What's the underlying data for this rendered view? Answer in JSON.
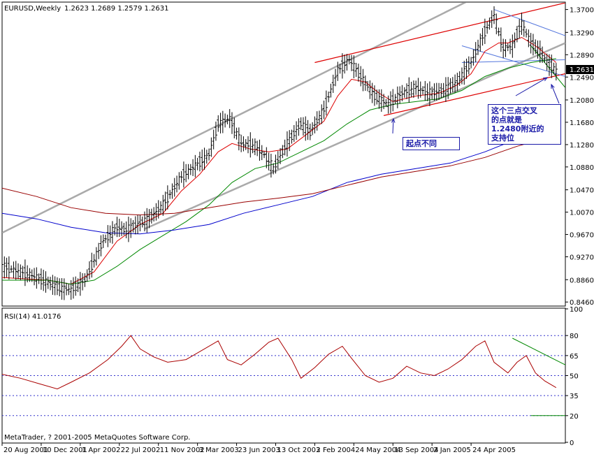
{
  "header": {
    "symbol": "EURUSD,Weekly",
    "ohlc": "1.2623 1.2689 1.2579 1.2631"
  },
  "rsi_header": "RSI(14) 41.0176",
  "copyright": "MetaTrader, ? 2001-2005 MetaQuotes Software Corp.",
  "current_price_label": "1.2631",
  "annotations": {
    "support_note": [
      "这个三点交叉",
      "的点就是",
      "1.2480附近的",
      "支持位"
    ],
    "start_note": "起点不同"
  },
  "colors": {
    "bars": "#000000",
    "ma_fast": "#dd0000",
    "ma_mid": "#008800",
    "ma_slow_blue": "#0000cc",
    "ma_slow_red": "#990000",
    "channel_gray": "#aaaaaa",
    "channel_red": "#dd0000",
    "trend_blue": "#5577dd",
    "rsi_line": "#aa0000",
    "rsi_level": "#3333cc",
    "annot_blue": "#1a1aa8"
  },
  "chart_data": [
    {
      "type": "ohlc-bar",
      "title": "EURUSD,Weekly",
      "x_tick_labels": [
        "20 Aug 2001",
        "10 Dec 2001",
        "1 Apr 2002",
        "22 Jul 2002",
        "11 Nov 2002",
        "3 Mar 2003",
        "23 Jun 2003",
        "13 Oct 2003",
        "2 Feb 2004",
        "24 May 2004",
        "13 Sep 2004",
        "2 Jan 2005",
        "24 Apr 2005"
      ],
      "y_ticks": [
        1.37,
        1.329,
        1.289,
        1.249,
        1.208,
        1.168,
        1.128,
        1.088,
        1.047,
        1.007,
        0.967,
        0.927,
        0.886,
        0.846
      ],
      "ylim": [
        0.84,
        1.382
      ],
      "grid": false,
      "last_price": 1.2631,
      "price_path": [
        [
          0,
          0.91
        ],
        [
          12,
          0.895
        ],
        [
          26,
          0.87
        ],
        [
          30,
          0.868
        ],
        [
          36,
          0.885
        ],
        [
          44,
          0.955
        ],
        [
          50,
          0.98
        ],
        [
          54,
          0.975
        ],
        [
          64,
          0.995
        ],
        [
          70,
          1.02
        ],
        [
          78,
          1.07
        ],
        [
          84,
          1.09
        ],
        [
          90,
          1.11
        ],
        [
          94,
          1.165
        ],
        [
          99,
          1.175
        ],
        [
          104,
          1.13
        ],
        [
          110,
          1.125
        ],
        [
          114,
          1.11
        ],
        [
          118,
          1.085
        ],
        [
          124,
          1.13
        ],
        [
          130,
          1.165
        ],
        [
          134,
          1.15
        ],
        [
          140,
          1.19
        ],
        [
          146,
          1.26
        ],
        [
          151,
          1.28
        ],
        [
          156,
          1.25
        ],
        [
          162,
          1.215
        ],
        [
          168,
          1.2
        ],
        [
          174,
          1.22
        ],
        [
          180,
          1.23
        ],
        [
          186,
          1.22
        ],
        [
          192,
          1.225
        ],
        [
          198,
          1.24
        ],
        [
          204,
          1.275
        ],
        [
          210,
          1.33
        ],
        [
          214,
          1.36
        ],
        [
          218,
          1.3
        ],
        [
          222,
          1.305
        ],
        [
          226,
          1.345
        ],
        [
          230,
          1.31
        ],
        [
          234,
          1.295
        ],
        [
          238,
          1.27
        ],
        [
          241,
          1.262
        ]
      ],
      "series": [
        {
          "name": "",
          "key": "ma_fast",
          "points": [
            [
              0,
              0.89
            ],
            [
              20,
              0.885
            ],
            [
              30,
              0.878
            ],
            [
              40,
              0.9
            ],
            [
              50,
              0.955
            ],
            [
              60,
              0.985
            ],
            [
              70,
              1.005
            ],
            [
              78,
              1.045
            ],
            [
              86,
              1.075
            ],
            [
              94,
              1.115
            ],
            [
              100,
              1.13
            ],
            [
              108,
              1.12
            ],
            [
              116,
              1.115
            ],
            [
              124,
              1.12
            ],
            [
              132,
              1.145
            ],
            [
              140,
              1.17
            ],
            [
              146,
              1.215
            ],
            [
              152,
              1.245
            ],
            [
              158,
              1.24
            ],
            [
              164,
              1.22
            ],
            [
              170,
              1.205
            ],
            [
              180,
              1.215
            ],
            [
              190,
              1.22
            ],
            [
              198,
              1.235
            ],
            [
              204,
              1.255
            ],
            [
              210,
              1.295
            ],
            [
              216,
              1.31
            ],
            [
              220,
              1.31
            ],
            [
              226,
              1.32
            ],
            [
              232,
              1.305
            ],
            [
              238,
              1.285
            ],
            [
              241,
              1.275
            ]
          ]
        },
        {
          "name": "",
          "key": "ma_mid",
          "points": [
            [
              0,
              0.885
            ],
            [
              20,
              0.885
            ],
            [
              30,
              0.878
            ],
            [
              40,
              0.885
            ],
            [
              50,
              0.91
            ],
            [
              60,
              0.94
            ],
            [
              70,
              0.965
            ],
            [
              80,
              0.99
            ],
            [
              90,
              1.02
            ],
            [
              100,
              1.06
            ],
            [
              110,
              1.085
            ],
            [
              120,
              1.095
            ],
            [
              130,
              1.115
            ],
            [
              140,
              1.135
            ],
            [
              150,
              1.165
            ],
            [
              160,
              1.19
            ],
            [
              170,
              1.2
            ],
            [
              180,
              1.205
            ],
            [
              190,
              1.21
            ],
            [
              200,
              1.225
            ],
            [
              210,
              1.25
            ],
            [
              220,
              1.265
            ],
            [
              230,
              1.275
            ],
            [
              241,
              1.282
            ]
          ]
        },
        {
          "name": "",
          "key": "ma_slow_blue",
          "points": [
            [
              0,
              1.005
            ],
            [
              15,
              0.995
            ],
            [
              30,
              0.98
            ],
            [
              45,
              0.97
            ],
            [
              60,
              0.968
            ],
            [
              75,
              0.975
            ],
            [
              90,
              0.985
            ],
            [
              105,
              1.005
            ],
            [
              120,
              1.02
            ],
            [
              135,
              1.035
            ],
            [
              150,
              1.06
            ],
            [
              165,
              1.075
            ],
            [
              180,
              1.085
            ],
            [
              195,
              1.095
            ],
            [
              210,
              1.115
            ],
            [
              224,
              1.138
            ]
          ]
        },
        {
          "name": "",
          "key": "ma_slow_red",
          "points": [
            [
              0,
              1.05
            ],
            [
              15,
              1.035
            ],
            [
              30,
              1.015
            ],
            [
              45,
              1.005
            ],
            [
              60,
              1.002
            ],
            [
              75,
              1.005
            ],
            [
              90,
              1.015
            ],
            [
              105,
              1.025
            ],
            [
              120,
              1.032
            ],
            [
              135,
              1.04
            ],
            [
              150,
              1.055
            ],
            [
              165,
              1.07
            ],
            [
              180,
              1.08
            ],
            [
              195,
              1.09
            ],
            [
              210,
              1.105
            ],
            [
              224,
              1.125
            ],
            [
              231,
              1.133
            ]
          ]
        }
      ],
      "trendlines": [
        {
          "key": "channel_gray",
          "width": 2.5,
          "p1": [
            0,
            0.97
          ],
          "p2": [
            205,
            1.39
          ]
        },
        {
          "key": "channel_gray",
          "width": 2.5,
          "p1": [
            62,
            0.977
          ],
          "p2": [
            245,
            1.31
          ]
        },
        {
          "key": "channel_red",
          "width": 1.2,
          "p1": [
            136,
            1.275
          ],
          "p2": [
            245,
            1.382
          ]
        },
        {
          "key": "channel_red",
          "width": 1.2,
          "p1": [
            166,
            1.18
          ],
          "p2": [
            245,
            1.255
          ]
        },
        {
          "key": "trend_blue",
          "width": 1,
          "p1": [
            214,
            1.37
          ],
          "p2": [
            245,
            1.323
          ]
        },
        {
          "key": "trend_blue",
          "width": 1,
          "p1": [
            200,
            1.275
          ],
          "p2": [
            245,
            1.28
          ]
        },
        {
          "key": "trend_blue",
          "width": 1,
          "p1": [
            200,
            1.305
          ],
          "p2": [
            245,
            1.25
          ]
        },
        {
          "key": "ma_mid",
          "width": 1,
          "p1": [
            230,
            1.305
          ],
          "p2": [
            245,
            1.23
          ]
        }
      ],
      "arrows": [
        {
          "key": "annot_blue",
          "from": [
            738,
            137
          ],
          "to": [
            783,
            111
          ]
        },
        {
          "key": "annot_blue",
          "from": [
            562,
            191
          ],
          "to": [
            563,
            170
          ]
        },
        {
          "key": "annot_blue",
          "from": [
            800,
            148
          ],
          "to": [
            789,
            121
          ]
        }
      ]
    },
    {
      "type": "line",
      "title": "RSI(14) 41.0176",
      "y_ticks": [
        100,
        80,
        65,
        50,
        35,
        20,
        0
      ],
      "levels": [
        80,
        65,
        50,
        35,
        20
      ],
      "ylim": [
        0,
        100
      ],
      "series": [
        {
          "name": "RSI(14)",
          "key": "rsi_line",
          "points": [
            [
              0,
              51
            ],
            [
              8,
              48
            ],
            [
              16,
              44
            ],
            [
              24,
              40
            ],
            [
              30,
              45
            ],
            [
              38,
              52
            ],
            [
              46,
              62
            ],
            [
              52,
              72
            ],
            [
              56,
              80
            ],
            [
              60,
              70
            ],
            [
              66,
              64
            ],
            [
              72,
              60
            ],
            [
              80,
              62
            ],
            [
              88,
              70
            ],
            [
              94,
              76
            ],
            [
              98,
              62
            ],
            [
              104,
              58
            ],
            [
              110,
              66
            ],
            [
              116,
              75
            ],
            [
              120,
              78
            ],
            [
              126,
              62
            ],
            [
              130,
              48
            ],
            [
              136,
              56
            ],
            [
              142,
              66
            ],
            [
              148,
              72
            ],
            [
              152,
              63
            ],
            [
              158,
              50
            ],
            [
              164,
              45
            ],
            [
              170,
              48
            ],
            [
              176,
              57
            ],
            [
              182,
              52
            ],
            [
              188,
              50
            ],
            [
              194,
              55
            ],
            [
              200,
              62
            ],
            [
              206,
              72
            ],
            [
              210,
              76
            ],
            [
              214,
              60
            ],
            [
              220,
              52
            ],
            [
              224,
              60
            ],
            [
              228,
              65
            ],
            [
              232,
              52
            ],
            [
              236,
              46
            ],
            [
              241,
              41
            ]
          ]
        },
        {
          "name": "",
          "key": "ma_mid",
          "width": 1,
          "points": [
            [
              222,
              78
            ],
            [
              245,
              58
            ]
          ]
        },
        {
          "name": "",
          "key": "ma_mid",
          "width": 1,
          "points": [
            [
              230,
              20
            ],
            [
              245,
              20
            ]
          ]
        }
      ]
    }
  ]
}
